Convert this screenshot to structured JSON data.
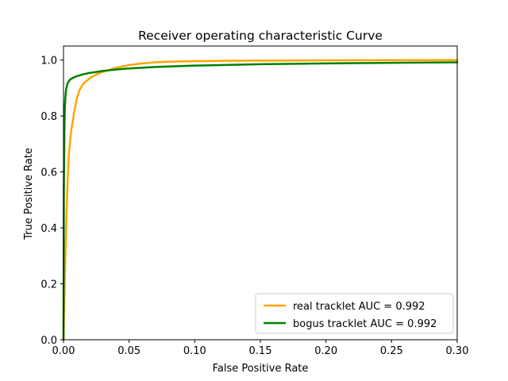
{
  "chart_data": {
    "type": "line",
    "title": "Receiver operating characteristic Curve",
    "xlabel": "False Positive Rate",
    "ylabel": "True Positive Rate",
    "xlim": [
      0,
      0.3
    ],
    "ylim": [
      0,
      1.05
    ],
    "xticks": [
      0.0,
      0.05,
      0.1,
      0.15,
      0.2,
      0.25,
      0.3
    ],
    "xtick_labels": [
      "0.00",
      "0.05",
      "0.10",
      "0.15",
      "0.20",
      "0.25",
      "0.30"
    ],
    "yticks": [
      0.0,
      0.2,
      0.4,
      0.6,
      0.8,
      1.0
    ],
    "ytick_labels": [
      "0.0",
      "0.2",
      "0.4",
      "0.6",
      "0.8",
      "1.0"
    ],
    "grid": false,
    "legend_position": "lower-right",
    "series": [
      {
        "name": "real tracklet AUC = 0.992",
        "color": "#ffa500",
        "x": [
          0,
          0.001,
          0.002,
          0.003,
          0.004,
          0.005,
          0.006,
          0.008,
          0.01,
          0.012,
          0.015,
          0.02,
          0.025,
          0.03,
          0.04,
          0.05,
          0.06,
          0.07,
          0.08,
          0.1,
          0.12,
          0.15,
          0.2,
          0.25,
          0.3
        ],
        "y": [
          0,
          0.22,
          0.4,
          0.55,
          0.66,
          0.71,
          0.75,
          0.81,
          0.86,
          0.89,
          0.915,
          0.935,
          0.948,
          0.958,
          0.972,
          0.982,
          0.988,
          0.992,
          0.994,
          0.996,
          0.997,
          0.998,
          0.999,
          0.9995,
          1.0
        ]
      },
      {
        "name": "bogus tracklet AUC = 0.992",
        "color": "#008000",
        "x": [
          0,
          0.0003,
          0.0007,
          0.001,
          0.0015,
          0.002,
          0.003,
          0.004,
          0.005,
          0.007,
          0.01,
          0.015,
          0.02,
          0.03,
          0.04,
          0.05,
          0.07,
          0.1,
          0.15,
          0.2,
          0.25,
          0.3
        ],
        "y": [
          0,
          0.55,
          0.75,
          0.83,
          0.87,
          0.895,
          0.915,
          0.924,
          0.93,
          0.936,
          0.942,
          0.949,
          0.954,
          0.961,
          0.966,
          0.97,
          0.975,
          0.98,
          0.985,
          0.988,
          0.99,
          0.992
        ]
      }
    ]
  }
}
